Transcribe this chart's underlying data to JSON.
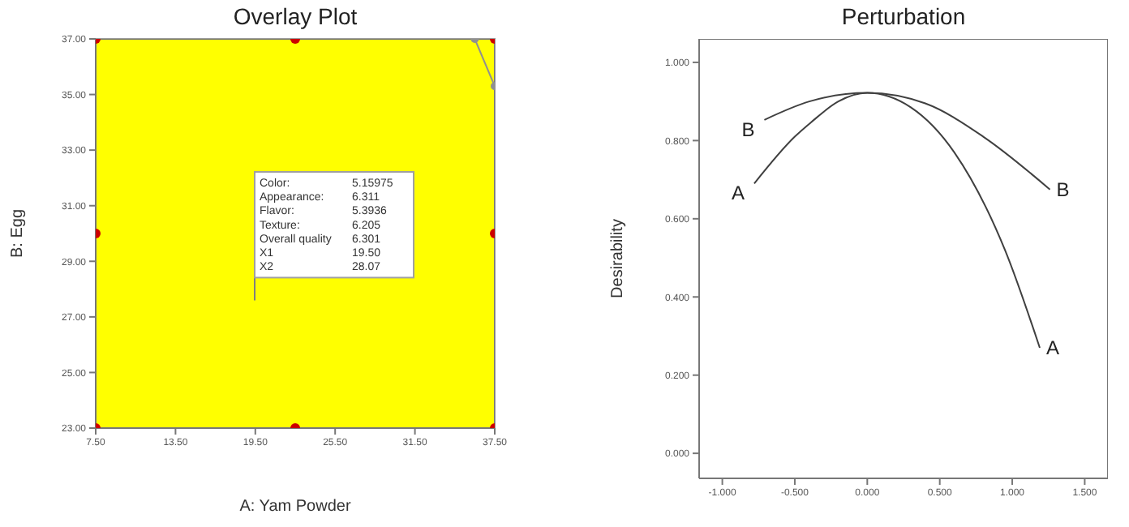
{
  "chart_data": [
    {
      "type": "scatter",
      "title": "Overlay Plot",
      "xlabel": "A: Yam Powder",
      "ylabel": "B: Egg",
      "xlim": [
        7.5,
        37.5
      ],
      "ylim": [
        23,
        37
      ],
      "xticks": [
        {
          "value": 7.5,
          "label": "7.50"
        },
        {
          "value": 13.5,
          "label": "13.50"
        },
        {
          "value": 19.5,
          "label": "19.50"
        },
        {
          "value": 25.5,
          "label": "25.50"
        },
        {
          "value": 31.5,
          "label": "31.50"
        },
        {
          "value": 37.5,
          "label": "37.50"
        }
      ],
      "yticks": [
        {
          "value": 23,
          "label": "23.00"
        },
        {
          "value": 25,
          "label": "25.00"
        },
        {
          "value": 27,
          "label": "27.00"
        },
        {
          "value": 29,
          "label": "29.00"
        },
        {
          "value": 31,
          "label": "31.00"
        },
        {
          "value": 33,
          "label": "33.00"
        },
        {
          "value": 35,
          "label": "35.00"
        },
        {
          "value": 37,
          "label": "37.00"
        }
      ],
      "bands": [
        {
          "axis": "x",
          "from": 7.5,
          "to": 37.5,
          "color": "#ffff00"
        }
      ],
      "series": [
        {
          "color": "#cc0000",
          "x": [
            7.5,
            22.5,
            37.5,
            7.5,
            37.5,
            7.5,
            22.5,
            37.5
          ],
          "values": [
            37,
            37,
            37,
            30,
            30,
            23,
            23,
            23
          ]
        },
        {
          "type": "line",
          "color": "#909090",
          "x": [
            36.0,
            37.5
          ],
          "values": [
            37,
            35.3
          ]
        }
      ],
      "annotations": [
        "Color: 5.15975",
        "Appearance: 6.311",
        "Flavor: 5.3936",
        "Texture: 6.205",
        "Overall quality 6.301",
        "X1 19.50",
        "X2 28.07"
      ],
      "marker": "circle",
      "grid": false,
      "legend": false
    },
    {
      "type": "line",
      "title": "Perturbation",
      "ylabel": "Desirability",
      "xlim": [
        -1.16,
        1.66
      ],
      "ylim": [
        -0.064,
        1.06
      ],
      "xticks": [
        {
          "value": -1,
          "label": "-1.000"
        },
        {
          "value": -0.5,
          "label": "-0.500"
        },
        {
          "value": 0,
          "label": "0.000"
        },
        {
          "value": 0.5,
          "label": "0.500"
        },
        {
          "value": 1,
          "label": "1.000"
        },
        {
          "value": 1.5,
          "label": "1.500"
        }
      ],
      "yticks": [
        {
          "value": 0,
          "label": "0.000"
        },
        {
          "value": 0.2,
          "label": "0.200"
        },
        {
          "value": 0.4,
          "label": "0.400"
        },
        {
          "value": 0.6,
          "label": "0.600"
        },
        {
          "value": 0.8,
          "label": "0.800"
        },
        {
          "value": 1,
          "label": "1.000"
        }
      ],
      "series": [
        {
          "name": "A",
          "color": "#404040",
          "x": [
            -0.78,
            -0.5,
            -0.39,
            -0.2,
            0,
            0.3,
            0.6,
            0.95,
            1.19
          ],
          "values": [
            0.69,
            0.81,
            0.846,
            0.9,
            0.922,
            0.885,
            0.77,
            0.52,
            0.27
          ]
        },
        {
          "name": "B",
          "color": "#404040",
          "x": [
            -0.71,
            -0.4,
            0,
            0.4,
            0.8,
            1.26
          ],
          "values": [
            0.853,
            0.9,
            0.922,
            0.895,
            0.81,
            0.675
          ]
        }
      ],
      "marker": "none",
      "line_style": "solid",
      "grid": false,
      "legend": false
    }
  ]
}
